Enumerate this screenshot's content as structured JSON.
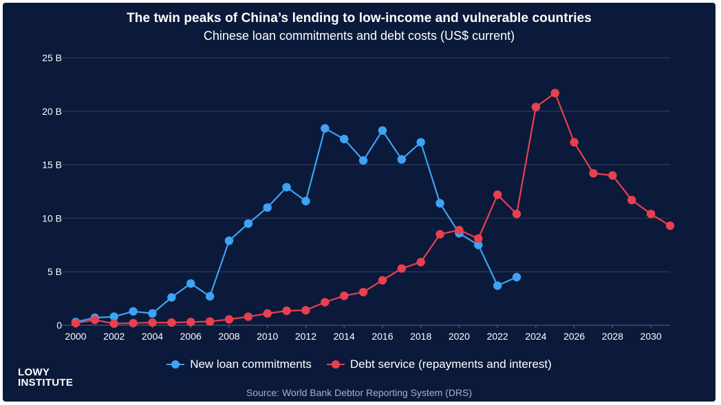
{
  "header": {
    "title": "The twin peaks of China’s lending to low-income and vulnerable countries",
    "subtitle": "Chinese loan commitments and debt costs (US$ current)"
  },
  "logo": {
    "line1": "LOWY",
    "line2": "INSTITUTE"
  },
  "source": "Source: World Bank Debtor Reporting System (DRS)",
  "colors": {
    "background": "#0b1a3a",
    "grid": "#33415e",
    "axis_text": "#ffffff",
    "new_loans": "#3fa2f5",
    "debt_service": "#e8404e"
  },
  "chart_data": {
    "type": "line",
    "title": "The twin peaks of China’s lending to low-income and vulnerable countries",
    "subtitle": "Chinese loan commitments and debt costs (US$ current)",
    "xlabel": "",
    "ylabel": "",
    "xlim": [
      2000,
      2031
    ],
    "ylim": [
      0,
      25
    ],
    "x_ticks": [
      2000,
      2002,
      2004,
      2006,
      2008,
      2010,
      2012,
      2014,
      2016,
      2018,
      2020,
      2022,
      2024,
      2026,
      2028,
      2030
    ],
    "x_tick_labels": [
      "2000",
      "2002",
      "2004",
      "2006",
      "2008",
      "2010",
      "2012",
      "2014",
      "2016",
      "2018",
      "2020",
      "2022",
      "2024",
      "2026",
      "2028",
      "2030"
    ],
    "y_ticks": [
      0,
      5,
      10,
      15,
      20,
      25
    ],
    "y_tick_labels": [
      "0",
      "5 B",
      "10 B",
      "15 B",
      "20 B",
      "25 B"
    ],
    "grid": "horizontal",
    "legend_position": "bottom-center",
    "series": [
      {
        "name": "New loan commitments",
        "color": "#3fa2f5",
        "x": [
          2000,
          2001,
          2002,
          2003,
          2004,
          2005,
          2006,
          2007,
          2008,
          2009,
          2010,
          2011,
          2012,
          2013,
          2014,
          2015,
          2016,
          2017,
          2018,
          2019,
          2020,
          2021,
          2022,
          2023
        ],
        "y": [
          0.3,
          0.7,
          0.8,
          1.3,
          1.1,
          2.6,
          3.9,
          2.7,
          7.9,
          9.5,
          11.0,
          12.9,
          11.6,
          18.4,
          17.4,
          15.4,
          18.2,
          15.5,
          17.1,
          11.4,
          8.6,
          7.5,
          3.7,
          4.5
        ]
      },
      {
        "name": "Debt service (repayments and interest)",
        "color": "#e8404e",
        "x": [
          2000,
          2001,
          2002,
          2003,
          2004,
          2005,
          2006,
          2007,
          2008,
          2009,
          2010,
          2011,
          2012,
          2013,
          2014,
          2015,
          2016,
          2017,
          2018,
          2019,
          2020,
          2021,
          2022,
          2023,
          2024,
          2025,
          2026,
          2027,
          2028,
          2029,
          2030,
          2031
        ],
        "y": [
          0.2,
          0.5,
          0.15,
          0.2,
          0.25,
          0.25,
          0.3,
          0.35,
          0.55,
          0.8,
          1.1,
          1.35,
          1.4,
          2.15,
          2.75,
          3.1,
          4.2,
          5.3,
          5.9,
          8.5,
          8.9,
          8.1,
          12.2,
          10.4,
          20.4,
          21.7,
          17.1,
          14.2,
          14.0,
          11.7,
          10.4,
          9.3
        ]
      }
    ]
  }
}
